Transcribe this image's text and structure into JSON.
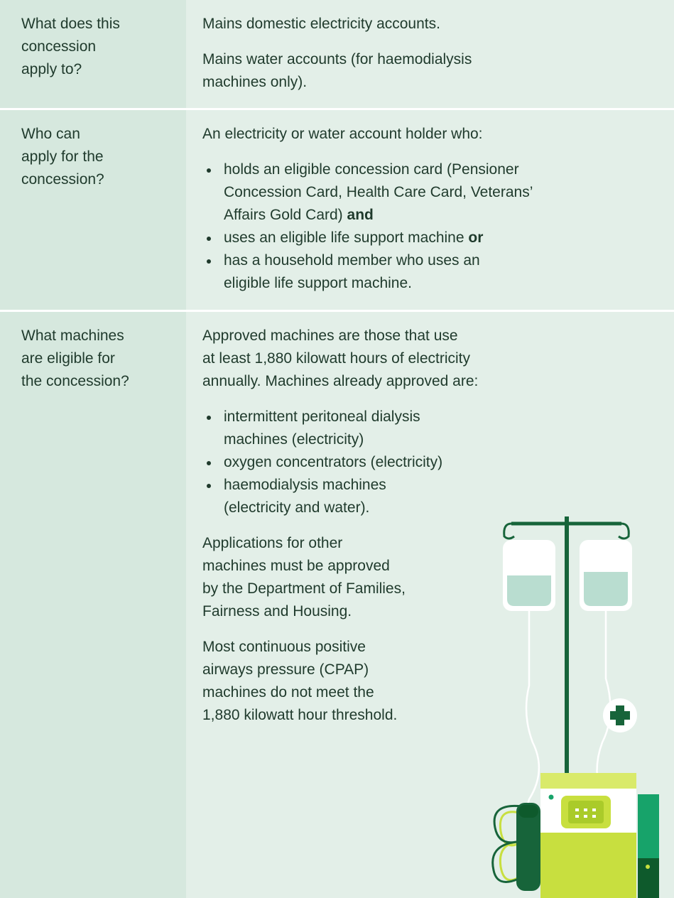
{
  "table": {
    "rows": [
      {
        "label": [
          "What does this",
          "concession",
          "apply to?"
        ],
        "content": [
          {
            "para": [
              "Mains domestic electricity accounts."
            ]
          },
          {
            "para": [
              "Mains water accounts (for haemodialysis",
              "machines only)."
            ]
          }
        ]
      },
      {
        "label": [
          "Who can",
          "apply for the",
          "concession?"
        ],
        "content": [
          {
            "para": [
              "An electricity or water account holder who:"
            ]
          },
          {
            "bullets": [
              {
                "lines": [
                  "holds an eligible concession card (Pensioner",
                  "Concession Card, Health Care Card, Veterans’",
                  "Affairs Gold Card)"
                ],
                "emphasis": "and"
              },
              {
                "lines": [
                  "uses an eligible life support machine"
                ],
                "emphasis": "or"
              },
              {
                "lines": [
                  "has a household member who uses an",
                  "eligible life support machine."
                ]
              }
            ]
          }
        ]
      },
      {
        "label": [
          "What machines",
          "are eligible for",
          "the concession?"
        ],
        "content": [
          {
            "para": [
              "Approved machines are those that use",
              "at least 1,880 kilowatt hours of electricity",
              "annually. Machines already approved are:"
            ]
          },
          {
            "bullets": [
              {
                "lines": [
                  "intermittent peritoneal dialysis",
                  "machines (electricity)"
                ]
              },
              {
                "lines": [
                  "oxygen concentrators (electricity)"
                ]
              },
              {
                "lines": [
                  "haemodialysis machines",
                  "(electricity and water)."
                ]
              }
            ]
          },
          {
            "para": [
              "Applications for other",
              "machines must be approved",
              "by the Department of Families,",
              "Fairness and Housing."
            ]
          },
          {
            "para": [
              "Most continuous positive",
              "airways pressure (CPAP)",
              "machines do not meet the",
              "1,880 kilowatt hour threshold."
            ]
          }
        ]
      }
    ]
  }
}
